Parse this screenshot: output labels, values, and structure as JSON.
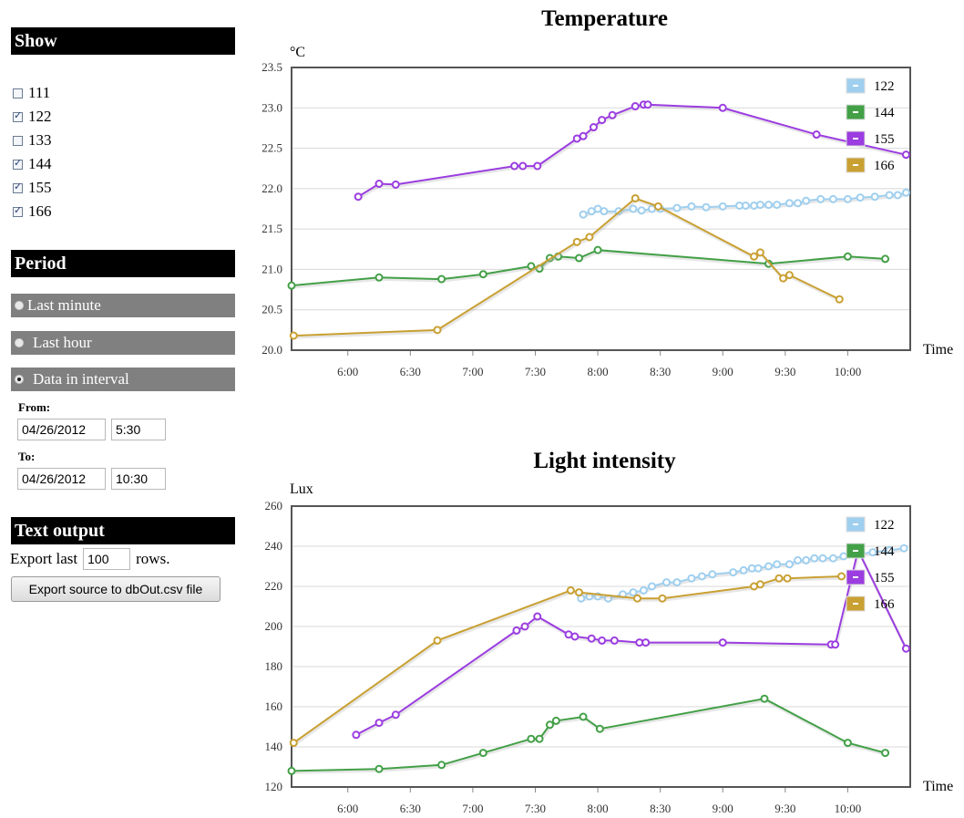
{
  "show": {
    "header": "Show",
    "items": [
      {
        "label": "111",
        "checked": false
      },
      {
        "label": "122",
        "checked": true
      },
      {
        "label": "133",
        "checked": false
      },
      {
        "label": "144",
        "checked": true
      },
      {
        "label": "155",
        "checked": true
      },
      {
        "label": "166",
        "checked": true
      }
    ]
  },
  "period": {
    "header": "Period",
    "options": [
      {
        "label": "Last minute",
        "selected": false
      },
      {
        "label": "Last hour",
        "selected": false
      },
      {
        "label": "Data in interval",
        "selected": true
      }
    ],
    "from_label": "From:",
    "from_date": "04/26/2012",
    "from_time": "5:30",
    "to_label": "To:",
    "to_date": "04/26/2012",
    "to_time": "10:30"
  },
  "text_output": {
    "header": "Text output",
    "export_prefix": "Export last",
    "rows_value": "100",
    "export_suffix": "rows.",
    "button_label": "Export source to dbOut.csv file"
  },
  "series_colors": {
    "122": "#9fcfef",
    "144": "#43a047",
    "155": "#9b3de0",
    "166": "#c9a032"
  },
  "chart_data": [
    {
      "type": "line",
      "title": "Temperature",
      "ylabel": "°C",
      "xlabel": "Time",
      "x_unit": "time of day",
      "ylim": [
        20.0,
        23.5
      ],
      "xlim": [
        "5:33",
        "10:30"
      ],
      "yticks": [
        "20.0",
        "20.5",
        "21.0",
        "21.5",
        "22.0",
        "22.5",
        "23.0",
        "23.5"
      ],
      "xticks": [
        "6:00",
        "6:30",
        "7:00",
        "7:30",
        "8:00",
        "8:30",
        "9:00",
        "9:30",
        "10:00"
      ],
      "legend": [
        "122",
        "144",
        "155",
        "166"
      ],
      "legend_position": "top-right",
      "grid": true,
      "series": [
        {
          "name": "122",
          "points": [
            [
              "7:53",
              21.68
            ],
            [
              "7:57",
              21.72
            ],
            [
              "8:00",
              21.75
            ],
            [
              "8:03",
              21.72
            ],
            [
              "8:10",
              21.72
            ],
            [
              "8:17",
              21.75
            ],
            [
              "8:21",
              21.73
            ],
            [
              "8:26",
              21.75
            ],
            [
              "8:30",
              21.75
            ],
            [
              "8:38",
              21.76
            ],
            [
              "8:45",
              21.78
            ],
            [
              "8:52",
              21.77
            ],
            [
              "9:00",
              21.78
            ],
            [
              "9:08",
              21.79
            ],
            [
              "9:11",
              21.79
            ],
            [
              "9:15",
              21.79
            ],
            [
              "9:18",
              21.8
            ],
            [
              "9:22",
              21.8
            ],
            [
              "9:26",
              21.8
            ],
            [
              "9:32",
              21.82
            ],
            [
              "9:36",
              21.82
            ],
            [
              "9:40",
              21.85
            ],
            [
              "9:47",
              21.87
            ],
            [
              "9:53",
              21.87
            ],
            [
              "10:00",
              21.87
            ],
            [
              "10:06",
              21.89
            ],
            [
              "10:13",
              21.9
            ],
            [
              "10:20",
              21.92
            ],
            [
              "10:24",
              21.92
            ],
            [
              "10:28",
              21.95
            ]
          ]
        },
        {
          "name": "144",
          "points": [
            [
              "5:33",
              20.8
            ],
            [
              "6:15",
              20.9
            ],
            [
              "6:45",
              20.88
            ],
            [
              "7:05",
              20.94
            ],
            [
              "7:28",
              21.04
            ],
            [
              "7:32",
              21.01
            ],
            [
              "7:37",
              21.14
            ],
            [
              "7:41",
              21.16
            ],
            [
              "7:51",
              21.14
            ],
            [
              "8:00",
              21.24
            ],
            [
              "9:22",
              21.07
            ],
            [
              "10:00",
              21.16
            ],
            [
              "10:18",
              21.13
            ]
          ]
        },
        {
          "name": "155",
          "points": [
            [
              "6:05",
              21.9
            ],
            [
              "6:15",
              22.06
            ],
            [
              "6:23",
              22.05
            ],
            [
              "7:20",
              22.28
            ],
            [
              "7:24",
              22.28
            ],
            [
              "7:31",
              22.28
            ],
            [
              "7:50",
              22.62
            ],
            [
              "7:53",
              22.65
            ],
            [
              "7:58",
              22.76
            ],
            [
              "8:02",
              22.85
            ],
            [
              "8:07",
              22.91
            ],
            [
              "8:18",
              23.02
            ],
            [
              "8:22",
              23.04
            ],
            [
              "8:24",
              23.04
            ],
            [
              "9:00",
              23.0
            ],
            [
              "9:45",
              22.67
            ],
            [
              "10:28",
              22.42
            ]
          ]
        },
        {
          "name": "166",
          "points": [
            [
              "5:34",
              20.18
            ],
            [
              "6:43",
              20.25
            ],
            [
              "7:50",
              21.34
            ],
            [
              "7:56",
              21.4
            ],
            [
              "8:18",
              21.88
            ],
            [
              "8:29",
              21.78
            ],
            [
              "9:15",
              21.16
            ],
            [
              "9:18",
              21.21
            ],
            [
              "9:29",
              20.89
            ],
            [
              "9:32",
              20.93
            ],
            [
              "9:56",
              20.63
            ]
          ]
        }
      ]
    },
    {
      "type": "line",
      "title": "Light intensity",
      "ylabel": "Lux",
      "xlabel": "Time",
      "x_unit": "time of day",
      "ylim": [
        120,
        260
      ],
      "xlim": [
        "5:33",
        "10:30"
      ],
      "yticks": [
        "120",
        "140",
        "160",
        "180",
        "200",
        "220",
        "240",
        "260"
      ],
      "xticks": [
        "6:00",
        "6:30",
        "7:00",
        "7:30",
        "8:00",
        "8:30",
        "9:00",
        "9:30",
        "10:00"
      ],
      "legend": [
        "122",
        "144",
        "155",
        "166"
      ],
      "legend_position": "top-right",
      "grid": true,
      "series": [
        {
          "name": "122",
          "points": [
            [
              "7:52",
              214
            ],
            [
              "7:56",
              215
            ],
            [
              "8:00",
              215
            ],
            [
              "8:05",
              214
            ],
            [
              "8:12",
              216
            ],
            [
              "8:17",
              217
            ],
            [
              "8:22",
              218
            ],
            [
              "8:26",
              220
            ],
            [
              "8:33",
              222
            ],
            [
              "8:38",
              222
            ],
            [
              "8:45",
              224
            ],
            [
              "8:50",
              225
            ],
            [
              "8:55",
              226
            ],
            [
              "9:05",
              227
            ],
            [
              "9:10",
              228
            ],
            [
              "9:14",
              229
            ],
            [
              "9:17",
              229
            ],
            [
              "9:22",
              230
            ],
            [
              "9:26",
              231
            ],
            [
              "9:32",
              231
            ],
            [
              "9:36",
              233
            ],
            [
              "9:40",
              233
            ],
            [
              "9:44",
              234
            ],
            [
              "9:48",
              234
            ],
            [
              "9:53",
              234
            ],
            [
              "9:58",
              235
            ],
            [
              "10:05",
              236
            ],
            [
              "10:12",
              237
            ],
            [
              "10:20",
              238
            ],
            [
              "10:27",
              239
            ]
          ]
        },
        {
          "name": "144",
          "points": [
            [
              "5:33",
              128
            ],
            [
              "6:15",
              129
            ],
            [
              "6:45",
              131
            ],
            [
              "7:05",
              137
            ],
            [
              "7:28",
              144
            ],
            [
              "7:32",
              144
            ],
            [
              "7:37",
              151
            ],
            [
              "7:40",
              153
            ],
            [
              "7:53",
              155
            ],
            [
              "8:01",
              149
            ],
            [
              "9:20",
              164
            ],
            [
              "10:00",
              142
            ],
            [
              "10:18",
              137
            ]
          ]
        },
        {
          "name": "155",
          "points": [
            [
              "6:04",
              146
            ],
            [
              "6:15",
              152
            ],
            [
              "6:23",
              156
            ],
            [
              "7:21",
              198
            ],
            [
              "7:25",
              200
            ],
            [
              "7:31",
              205
            ],
            [
              "7:46",
              196
            ],
            [
              "7:49",
              195
            ],
            [
              "7:57",
              194
            ],
            [
              "8:02",
              193
            ],
            [
              "8:08",
              193
            ],
            [
              "8:20",
              192
            ],
            [
              "8:23",
              192
            ],
            [
              "9:00",
              192
            ],
            [
              "9:52",
              191
            ],
            [
              "9:54",
              191
            ],
            [
              "10:05",
              238
            ],
            [
              "10:28",
              189
            ]
          ]
        },
        {
          "name": "166",
          "points": [
            [
              "5:34",
              142
            ],
            [
              "6:43",
              193
            ],
            [
              "7:47",
              218
            ],
            [
              "7:51",
              217
            ],
            [
              "8:19",
              214
            ],
            [
              "8:31",
              214
            ],
            [
              "9:15",
              220
            ],
            [
              "9:18",
              221
            ],
            [
              "9:27",
              224
            ],
            [
              "9:31",
              224
            ],
            [
              "9:57",
              225
            ]
          ]
        }
      ]
    }
  ]
}
